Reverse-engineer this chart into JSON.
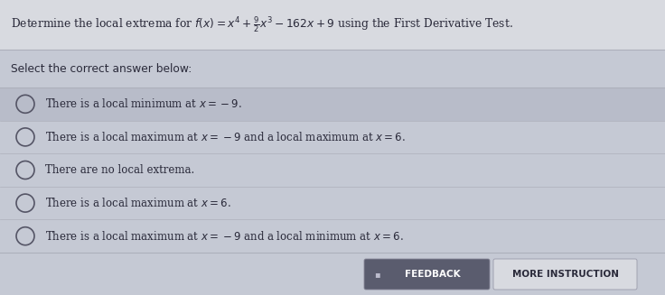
{
  "title": "Determine the local extrema for $f(x) = x^4 + \\frac{9}{2}x^3 - 162x + 9$ using the First Derivative Test.",
  "subtitle": "Select the correct answer below:",
  "options": [
    "There is a local minimum at $x = -9$.",
    "There is a local maximum at $x = -9$ and a local maximum at $x = 6$.",
    "There are no local extrema.",
    "There is a local maximum at $x = 6$.",
    "There is a local maximum at $x = -9$ and a local minimum at $x = 6$."
  ],
  "highlighted_option": 0,
  "bg_color": "#c5c9d4",
  "title_bg": "#d8dae0",
  "option_bg": "#cdd0db",
  "highlight_color": "#b8bcc9",
  "separator_color": "#adb0bb",
  "button_feedback_bg": "#5a5c6e",
  "button_more_bg": "#d8dae0",
  "button_feedback_text": "FEEDBACK",
  "button_more_text": "MORE INSTRUCTION",
  "text_color": "#2a2a3a",
  "button_feedback_text_color": "#ffffff",
  "button_more_text_color": "#2a2a3a",
  "circle_color": "#555566",
  "title_fontsize": 8.8,
  "option_fontsize": 8.5,
  "subtitle_fontsize": 8.8
}
